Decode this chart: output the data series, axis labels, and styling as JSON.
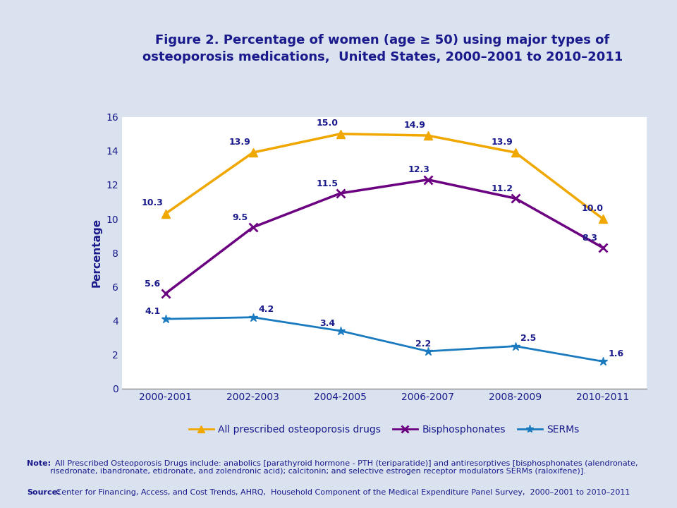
{
  "title": "Figure 2. Percentage of women (age ≥ 50) using major types of\nosteoporosis medications,  United States, 2000–2001 to 2010–2011",
  "title_color": "#1a1a8c",
  "title_fontsize": 13,
  "ylabel": "Percentage",
  "ylabel_color": "#1a1a8c",
  "ylabel_fontsize": 11,
  "categories": [
    "2000-2001",
    "2002-2003",
    "2004-2005",
    "2006-2007",
    "2008-2009",
    "2010-2011"
  ],
  "all_drugs": [
    10.3,
    13.9,
    15.0,
    14.9,
    13.9,
    10.0
  ],
  "bisphosphonates": [
    5.6,
    9.5,
    11.5,
    12.3,
    11.2,
    8.3
  ],
  "serms": [
    4.1,
    4.2,
    3.4,
    2.2,
    2.5,
    1.6
  ],
  "all_drugs_color": "#f0a800",
  "bisphosphonates_color": "#6b0080",
  "serms_color": "#1a7abf",
  "ylim": [
    0,
    16
  ],
  "yticks": [
    0,
    2,
    4,
    6,
    8,
    10,
    12,
    14,
    16
  ],
  "legend_labels": [
    "All prescribed osteoporosis drugs",
    "Bisphosphonates",
    "SERMs"
  ],
  "note_bold": "Note:",
  "note_text": "  All Prescribed Osteoporosis Drugs include: anabolics [parathyroid hormone - PTH (teriparatide)] and antiresorptives [bisphosphonates (alendronate,\nrisedronate, ibandronate, etidronate, and zolendronic acid); calcitonin; and selective estrogen receptor modulators SERMs (raloxifene)].",
  "source_bold": "Source:",
  "source_text": " Center for Financing, Access, and Cost Trends, AHRQ,  Household Component of the Medical Expenditure Panel Survey,  2000–2001 to 2010–2011",
  "note_color": "#1a1a8c",
  "note_fontsize": 8,
  "bg_color": "#d9e2ee",
  "plot_bg_color": "#ffffff",
  "separator_color": "#9aabbf",
  "offsets_all_dx": [
    -0.15,
    -0.15,
    -0.15,
    -0.15,
    -0.15,
    -0.12
  ],
  "offsets_all_dy": [
    0.35,
    0.35,
    0.35,
    0.35,
    0.35,
    0.35
  ],
  "offsets_bis_dx": [
    -0.15,
    -0.15,
    -0.15,
    -0.1,
    -0.15,
    -0.15
  ],
  "offsets_bis_dy": [
    0.3,
    0.3,
    0.3,
    0.3,
    0.3,
    0.3
  ],
  "offsets_serms_dx": [
    -0.15,
    0.15,
    -0.15,
    -0.05,
    0.15,
    0.15
  ],
  "offsets_serms_dy": [
    0.18,
    0.18,
    0.18,
    0.18,
    0.18,
    0.18
  ]
}
